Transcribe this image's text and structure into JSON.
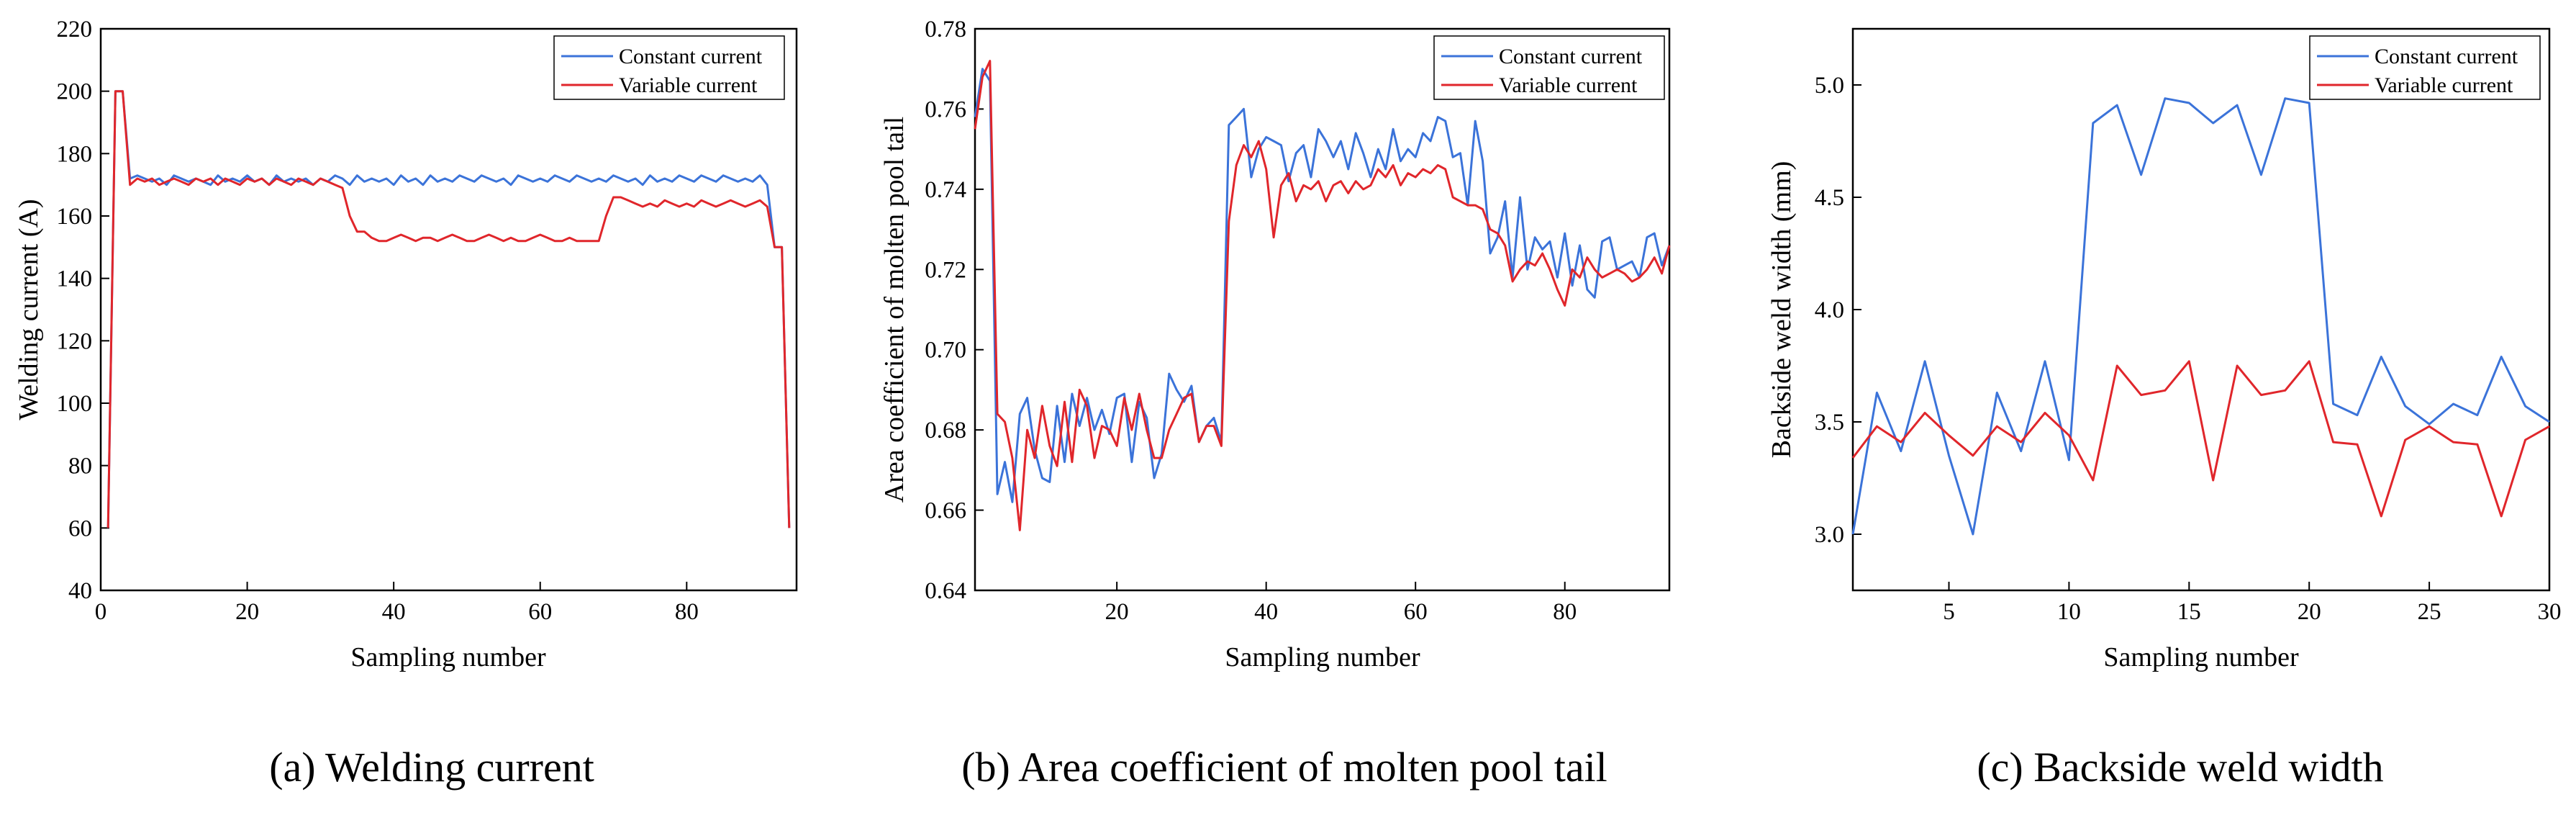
{
  "colors": {
    "constant": "#3b73d9",
    "variable": "#e0262b"
  },
  "chart_data": [
    {
      "type": "line",
      "caption": "(a) Welding current",
      "xlabel": "Sampling number",
      "ylabel": "Welding current (A)",
      "xlim": [
        0,
        95
      ],
      "ylim": [
        40,
        220
      ],
      "xticks": [
        "0",
        "20",
        "40",
        "60",
        "80"
      ],
      "xtick_values": [
        0,
        20,
        40,
        60,
        80
      ],
      "yticks": [
        "40",
        "60",
        "80",
        "100",
        "120",
        "140",
        "160",
        "180",
        "200",
        "220"
      ],
      "ytick_values": [
        40,
        60,
        80,
        100,
        120,
        140,
        160,
        180,
        200,
        220
      ],
      "legend_position": "top-right",
      "series": [
        {
          "name": "Constant current",
          "color": "#3b73d9",
          "x": [
            1,
            2,
            3,
            4,
            5,
            6,
            7,
            8,
            9,
            10,
            11,
            12,
            13,
            14,
            15,
            16,
            17,
            18,
            19,
            20,
            21,
            22,
            23,
            24,
            25,
            26,
            27,
            28,
            29,
            30,
            31,
            32,
            33,
            34,
            35,
            36,
            37,
            38,
            39,
            40,
            41,
            42,
            43,
            44,
            45,
            46,
            47,
            48,
            49,
            50,
            51,
            52,
            53,
            54,
            55,
            56,
            57,
            58,
            59,
            60,
            61,
            62,
            63,
            64,
            65,
            66,
            67,
            68,
            69,
            70,
            71,
            72,
            73,
            74,
            75,
            76,
            77,
            78,
            79,
            80,
            81,
            82,
            83,
            84,
            85,
            86,
            87,
            88,
            89,
            90,
            91,
            92,
            93,
            94
          ],
          "y": [
            60,
            200,
            200,
            172,
            173,
            172,
            171,
            172,
            170,
            173,
            172,
            171,
            172,
            171,
            170,
            173,
            171,
            172,
            171,
            173,
            171,
            172,
            170,
            173,
            171,
            172,
            171,
            172,
            170,
            172,
            171,
            173,
            172,
            170,
            173,
            171,
            172,
            171,
            172,
            170,
            173,
            171,
            172,
            170,
            173,
            171,
            172,
            171,
            173,
            172,
            171,
            173,
            172,
            171,
            172,
            170,
            173,
            172,
            171,
            172,
            171,
            173,
            172,
            171,
            173,
            172,
            171,
            172,
            171,
            173,
            172,
            171,
            172,
            170,
            173,
            171,
            172,
            171,
            173,
            172,
            171,
            173,
            172,
            171,
            173,
            172,
            171,
            172,
            171,
            173,
            170,
            150,
            150,
            60
          ]
        },
        {
          "name": "Variable current",
          "color": "#e0262b",
          "x": [
            1,
            2,
            3,
            4,
            5,
            6,
            7,
            8,
            9,
            10,
            11,
            12,
            13,
            14,
            15,
            16,
            17,
            18,
            19,
            20,
            21,
            22,
            23,
            24,
            25,
            26,
            27,
            28,
            29,
            30,
            31,
            32,
            33,
            34,
            35,
            36,
            37,
            38,
            39,
            40,
            41,
            42,
            43,
            44,
            45,
            46,
            47,
            48,
            49,
            50,
            51,
            52,
            53,
            54,
            55,
            56,
            57,
            58,
            59,
            60,
            61,
            62,
            63,
            64,
            65,
            66,
            67,
            68,
            69,
            70,
            71,
            72,
            73,
            74,
            75,
            76,
            77,
            78,
            79,
            80,
            81,
            82,
            83,
            84,
            85,
            86,
            87,
            88,
            89,
            90,
            91,
            92,
            93,
            94
          ],
          "y": [
            60,
            200,
            200,
            170,
            172,
            171,
            172,
            170,
            171,
            172,
            171,
            170,
            172,
            171,
            172,
            170,
            172,
            171,
            170,
            172,
            171,
            172,
            170,
            172,
            171,
            170,
            172,
            171,
            170,
            172,
            171,
            170,
            169,
            160,
            155,
            155,
            153,
            152,
            152,
            153,
            154,
            153,
            152,
            153,
            153,
            152,
            153,
            154,
            153,
            152,
            152,
            153,
            154,
            153,
            152,
            153,
            152,
            152,
            153,
            154,
            153,
            152,
            152,
            153,
            152,
            152,
            152,
            152,
            160,
            166,
            166,
            165,
            164,
            163,
            164,
            163,
            165,
            164,
            163,
            164,
            163,
            165,
            164,
            163,
            164,
            165,
            164,
            163,
            164,
            165,
            163,
            150,
            150,
            60
          ]
        }
      ]
    },
    {
      "type": "line",
      "caption": "(b) Area coefficient of molten pool tail",
      "xlabel": "Sampling number",
      "ylabel": "Area coefficient of molten pool tail",
      "xlim": [
        1,
        94
      ],
      "ylim": [
        0.64,
        0.78
      ],
      "xticks": [
        "20",
        "40",
        "60",
        "80"
      ],
      "xtick_values": [
        20,
        40,
        60,
        80
      ],
      "yticks": [
        "0.64",
        "0.66",
        "0.68",
        "0.70",
        "0.72",
        "0.74",
        "0.76",
        "0.78"
      ],
      "ytick_values": [
        0.64,
        0.66,
        0.68,
        0.7,
        0.72,
        0.74,
        0.76,
        0.78
      ],
      "legend_position": "top-right",
      "series": [
        {
          "name": "Constant current",
          "color": "#3b73d9",
          "x": [
            1,
            2,
            3,
            4,
            5,
            6,
            7,
            8,
            9,
            10,
            11,
            12,
            13,
            14,
            15,
            16,
            17,
            18,
            19,
            20,
            21,
            22,
            23,
            24,
            25,
            26,
            27,
            28,
            29,
            30,
            31,
            32,
            33,
            34,
            35,
            36,
            37,
            38,
            39,
            40,
            41,
            42,
            43,
            44,
            45,
            46,
            47,
            48,
            49,
            50,
            51,
            52,
            53,
            54,
            55,
            56,
            57,
            58,
            59,
            60,
            61,
            62,
            63,
            64,
            65,
            66,
            67,
            68,
            69,
            70,
            71,
            72,
            73,
            74,
            75,
            76,
            77,
            78,
            79,
            80,
            81,
            82,
            83,
            84,
            85,
            86,
            87,
            88,
            89,
            90,
            91,
            92,
            93,
            94
          ],
          "y": [
            0.758,
            0.77,
            0.767,
            0.664,
            0.672,
            0.662,
            0.684,
            0.688,
            0.675,
            0.668,
            0.667,
            0.686,
            0.672,
            0.689,
            0.681,
            0.688,
            0.68,
            0.685,
            0.679,
            0.688,
            0.689,
            0.672,
            0.687,
            0.683,
            0.668,
            0.674,
            0.694,
            0.69,
            0.687,
            0.691,
            0.677,
            0.681,
            0.683,
            0.677,
            0.756,
            0.758,
            0.76,
            0.743,
            0.75,
            0.753,
            0.752,
            0.751,
            0.742,
            0.749,
            0.751,
            0.743,
            0.755,
            0.752,
            0.748,
            0.752,
            0.745,
            0.754,
            0.749,
            0.743,
            0.75,
            0.745,
            0.755,
            0.747,
            0.75,
            0.748,
            0.754,
            0.752,
            0.758,
            0.757,
            0.748,
            0.749,
            0.736,
            0.757,
            0.747,
            0.724,
            0.728,
            0.737,
            0.718,
            0.738,
            0.72,
            0.728,
            0.725,
            0.727,
            0.718,
            0.729,
            0.716,
            0.726,
            0.715,
            0.713,
            0.727,
            0.728,
            0.72,
            0.721,
            0.722,
            0.718,
            0.728,
            0.729,
            0.721,
            0.726
          ]
        },
        {
          "name": "Variable current",
          "color": "#e0262b",
          "x": [
            1,
            2,
            3,
            4,
            5,
            6,
            7,
            8,
            9,
            10,
            11,
            12,
            13,
            14,
            15,
            16,
            17,
            18,
            19,
            20,
            21,
            22,
            23,
            24,
            25,
            26,
            27,
            28,
            29,
            30,
            31,
            32,
            33,
            34,
            35,
            36,
            37,
            38,
            39,
            40,
            41,
            42,
            43,
            44,
            45,
            46,
            47,
            48,
            49,
            50,
            51,
            52,
            53,
            54,
            55,
            56,
            57,
            58,
            59,
            60,
            61,
            62,
            63,
            64,
            65,
            66,
            67,
            68,
            69,
            70,
            71,
            72,
            73,
            74,
            75,
            76,
            77,
            78,
            79,
            80,
            81,
            82,
            83,
            84,
            85,
            86,
            87,
            88,
            89,
            90,
            91,
            92,
            93,
            94
          ],
          "y": [
            0.755,
            0.768,
            0.772,
            0.684,
            0.682,
            0.673,
            0.655,
            0.68,
            0.673,
            0.686,
            0.676,
            0.671,
            0.687,
            0.672,
            0.69,
            0.686,
            0.673,
            0.681,
            0.68,
            0.676,
            0.688,
            0.68,
            0.689,
            0.68,
            0.673,
            0.673,
            0.68,
            0.684,
            0.688,
            0.689,
            0.677,
            0.681,
            0.681,
            0.676,
            0.732,
            0.746,
            0.751,
            0.748,
            0.752,
            0.745,
            0.728,
            0.741,
            0.744,
            0.737,
            0.741,
            0.74,
            0.742,
            0.737,
            0.741,
            0.742,
            0.739,
            0.742,
            0.74,
            0.741,
            0.745,
            0.743,
            0.746,
            0.741,
            0.744,
            0.743,
            0.745,
            0.744,
            0.746,
            0.745,
            0.738,
            0.737,
            0.736,
            0.736,
            0.735,
            0.73,
            0.729,
            0.726,
            0.717,
            0.72,
            0.722,
            0.721,
            0.724,
            0.72,
            0.715,
            0.711,
            0.72,
            0.718,
            0.723,
            0.72,
            0.718,
            0.719,
            0.72,
            0.719,
            0.717,
            0.718,
            0.72,
            0.723,
            0.719,
            0.726
          ]
        }
      ]
    },
    {
      "type": "line",
      "caption": "(c) Backside weld width",
      "xlabel": "Sampling number",
      "ylabel": "Backside weld width (mm)",
      "xlim": [
        1,
        30
      ],
      "ylim": [
        2.75,
        5.25
      ],
      "xticks": [
        "5",
        "10",
        "15",
        "20",
        "25",
        "30"
      ],
      "xtick_values": [
        5,
        10,
        15,
        20,
        25,
        30
      ],
      "yticks": [
        "3.0",
        "3.5",
        "4.0",
        "4.5",
        "5.0"
      ],
      "ytick_values": [
        3.0,
        3.5,
        4.0,
        4.5,
        5.0
      ],
      "legend_position": "top-right",
      "series": [
        {
          "name": "Constant current",
          "color": "#3b73d9",
          "x": [
            1,
            2,
            3,
            4,
            5,
            6,
            7,
            8,
            9,
            10,
            11,
            12,
            13,
            14,
            15,
            16,
            17,
            18,
            19,
            20,
            21,
            22,
            23,
            24,
            25,
            26,
            27,
            28,
            29,
            30
          ],
          "y": [
            3.0,
            3.63,
            3.37,
            3.77,
            3.35,
            3.0,
            3.63,
            3.37,
            3.77,
            3.33,
            4.83,
            4.91,
            4.6,
            4.94,
            4.92,
            4.83,
            4.91,
            4.6,
            4.94,
            4.92,
            3.58,
            3.53,
            3.79,
            3.57,
            3.49,
            3.58,
            3.53,
            3.79,
            3.57,
            3.5
          ]
        },
        {
          "name": "Variable current",
          "color": "#e0262b",
          "x": [
            1,
            2,
            3,
            4,
            5,
            6,
            7,
            8,
            9,
            10,
            11,
            12,
            13,
            14,
            15,
            16,
            17,
            18,
            19,
            20,
            21,
            22,
            23,
            24,
            25,
            26,
            27,
            28,
            29,
            30
          ],
          "y": [
            3.34,
            3.48,
            3.41,
            3.54,
            3.44,
            3.35,
            3.48,
            3.41,
            3.54,
            3.44,
            3.24,
            3.75,
            3.62,
            3.64,
            3.77,
            3.24,
            3.75,
            3.62,
            3.64,
            3.77,
            3.41,
            3.4,
            3.08,
            3.42,
            3.48,
            3.41,
            3.4,
            3.08,
            3.42,
            3.48
          ]
        }
      ]
    }
  ]
}
